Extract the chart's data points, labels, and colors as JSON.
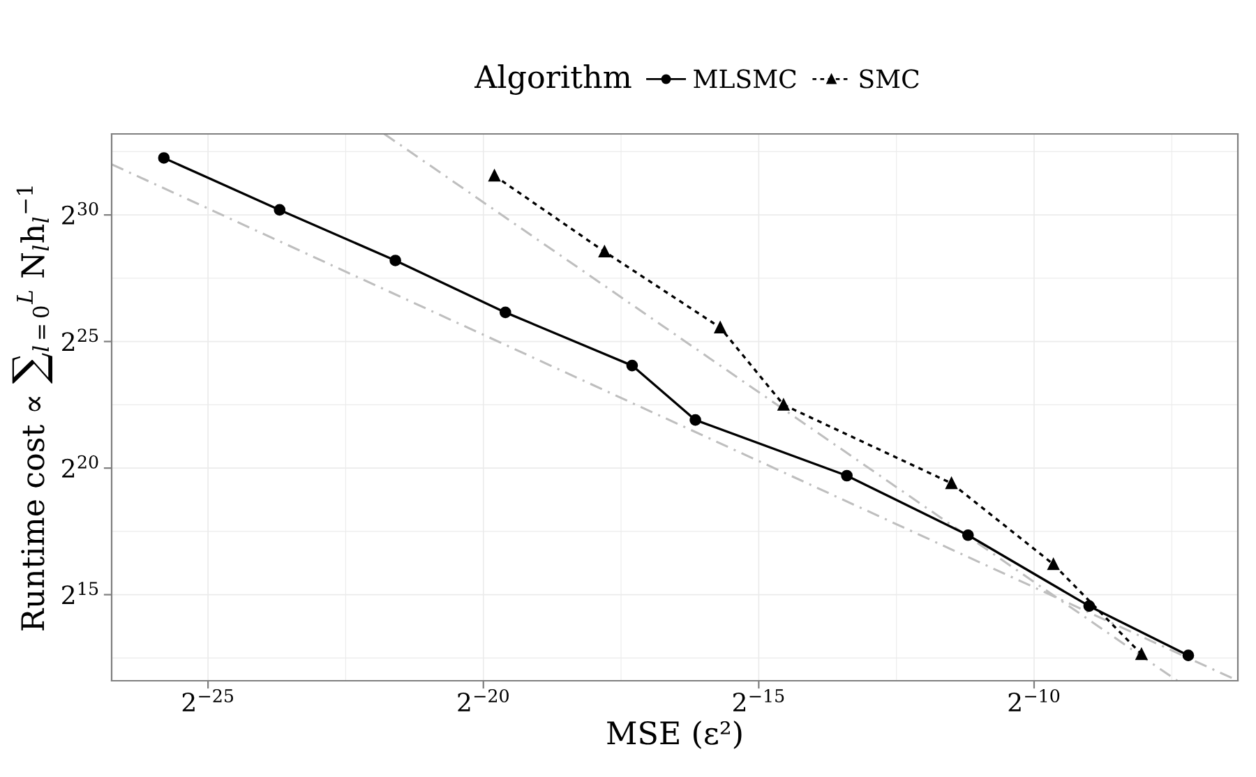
{
  "chart_data": {
    "type": "line",
    "xlabel": "MSE (ε²)",
    "ylabel": "Runtime cost ∝ ∑$_{l=0}$$^{L}$ N$_{l}$h$_{l}$$^{−1}$",
    "legend_title": "Algorithm",
    "log": "xy",
    "grid": true,
    "legend": "top",
    "xlim": [
      8.86e-09,
      0.01269
    ],
    "ylim": [
      3104,
      9867000000.0
    ],
    "xticks": [
      {
        "value": 2.9802322e-08,
        "label": "2$^{−25}$"
      },
      {
        "value": 9.5367432e-07,
        "label": "2$^{−20}$"
      },
      {
        "value": 3.0517578e-05,
        "label": "2$^{−15}$"
      },
      {
        "value": 0.0009765625,
        "label": "2$^{−10}$"
      }
    ],
    "yticks": [
      {
        "value": 32768,
        "label": "2$^{15}$"
      },
      {
        "value": 1048576,
        "label": "2$^{20}$"
      },
      {
        "value": 33554432,
        "label": "2$^{25}$"
      },
      {
        "value": 1073741824,
        "label": "2$^{30}$"
      }
    ],
    "series": [
      {
        "name": "MLSMC",
        "color": "#000000",
        "marker": "circle",
        "line_style": "solid",
        "x": [
          1.71e-08,
          7.34e-08,
          3.15e-07,
          1.258e-06,
          6.2e-06,
          1.375e-05,
          9.25e-05,
          0.000425,
          0.001953,
          0.0068
        ],
        "values": [
          5108000000.0,
          1233000000.0,
          308400000.0,
          74460000.0,
          17370000.0,
          3913000.0,
          851700.0,
          167100.0,
          23990.0,
          6208
        ]
      },
      {
        "name": "SMC",
        "color": "#000000",
        "marker": "triangle",
        "line_style": "dotted",
        "x": [
          1.096e-06,
          4.38e-06,
          1.879e-05,
          4.169e-05,
          0.0003452,
          0.001245,
          0.003773
        ],
        "values": [
          3144000000.0,
          393000000.0,
          49130000.0,
          5932000.0,
          691800.0,
          75280.0,
          6427
        ]
      },
      {
        "color": "#bebebe",
        "marker": "none",
        "line_style": "dashdot",
        "x": [
          8.86e-09,
          0.01269
        ],
        "values": [
          4295000000.0,
          3104
        ]
      },
      {
        "color": "#bebebe",
        "marker": "none",
        "line_style": "dashdot",
        "x": [
          2.739e-07,
          0.00592
        ],
        "values": [
          9867000000.0,
          3104
        ]
      }
    ]
  }
}
